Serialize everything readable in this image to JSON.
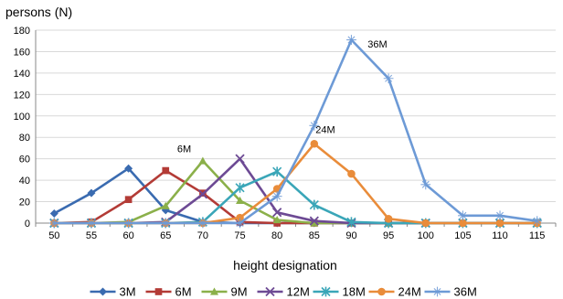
{
  "chart_data": {
    "type": "line",
    "ylabel": "persons (N)",
    "xlabel": "height designation",
    "x": [
      50,
      55,
      60,
      65,
      70,
      75,
      80,
      85,
      90,
      95,
      100,
      105,
      110,
      115
    ],
    "x_tick_labels": [
      "50",
      "55",
      "60",
      "65",
      "70",
      "75",
      "80",
      "85",
      "90",
      "95",
      "100",
      "105",
      "110",
      "115"
    ],
    "ylim": [
      0,
      180
    ],
    "y_ticks": [
      0,
      20,
      40,
      60,
      80,
      100,
      120,
      140,
      160,
      180
    ],
    "y_tick_labels": [
      "0",
      "20",
      "40",
      "60",
      "80",
      "100",
      "120",
      "140",
      "160",
      "180"
    ],
    "grid": "horizontal",
    "legend_position": "bottom",
    "series": [
      {
        "name": "3M",
        "color": "#3a6bb0",
        "marker": "diamond",
        "values": [
          9,
          28,
          51,
          12,
          1,
          0,
          0,
          0,
          0,
          0,
          0,
          0,
          0,
          0
        ]
      },
      {
        "name": "6M",
        "color": "#b33b36",
        "marker": "square",
        "values": [
          0,
          1,
          22,
          49,
          28,
          1,
          0,
          0,
          0,
          0,
          0,
          0,
          0,
          0
        ]
      },
      {
        "name": "9M",
        "color": "#8bb04a",
        "marker": "triangle",
        "values": [
          0,
          0,
          1,
          16,
          58,
          21,
          3,
          0,
          0,
          0,
          0,
          0,
          0,
          0
        ]
      },
      {
        "name": "12M",
        "color": "#6d4a94",
        "marker": "x",
        "values": [
          0,
          0,
          0,
          1,
          27,
          60,
          10,
          2,
          0,
          0,
          0,
          0,
          0,
          0
        ]
      },
      {
        "name": "18M",
        "color": "#3aa6b8",
        "marker": "asterisk",
        "values": [
          0,
          0,
          0,
          0,
          1,
          33,
          48,
          17,
          1,
          0,
          0,
          0,
          0,
          0
        ]
      },
      {
        "name": "24M",
        "color": "#e98c3a",
        "marker": "circle",
        "values": [
          0,
          0,
          0,
          0,
          0,
          5,
          32,
          74,
          46,
          4,
          0,
          0,
          0,
          0
        ]
      },
      {
        "name": "36M",
        "color": "#6d9ad6",
        "marker": "plus",
        "values": [
          0,
          0,
          0,
          0,
          0,
          0,
          25,
          91,
          171,
          135,
          36,
          7,
          7,
          2
        ]
      }
    ],
    "annotations": [
      {
        "text": "6M",
        "x": 67.5,
        "y": 66
      },
      {
        "text": "24M",
        "x": 86.5,
        "y": 84
      },
      {
        "text": "36M",
        "x": 93.5,
        "y": 164
      }
    ]
  }
}
